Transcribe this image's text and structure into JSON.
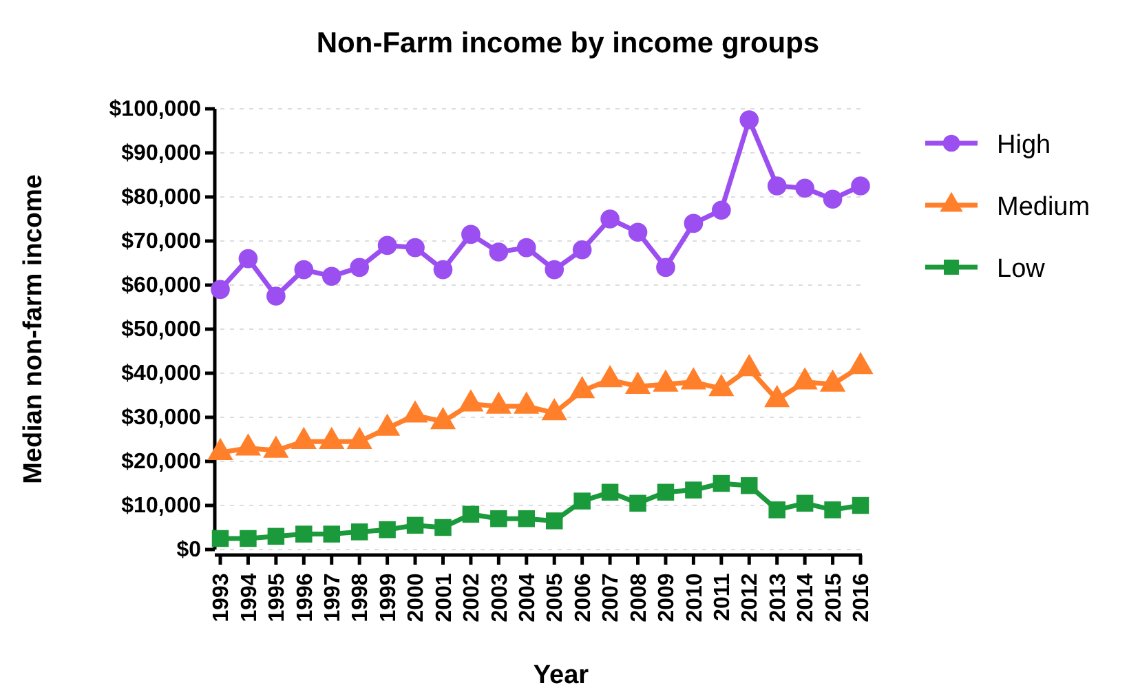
{
  "chart_data": {
    "type": "line",
    "title": "Non-Farm income by income groups",
    "xlabel": "Year",
    "ylabel": "Median non-farm income",
    "categories": [
      "1993",
      "1994",
      "1995",
      "1996",
      "1997",
      "1998",
      "1999",
      "2000",
      "2001",
      "2002",
      "2003",
      "2004",
      "2005",
      "2006",
      "2007",
      "2008",
      "2009",
      "2010",
      "2011",
      "2012",
      "2013",
      "2014",
      "2015",
      "2016"
    ],
    "series": [
      {
        "name": "High",
        "color": "#9b4ff0",
        "marker": "circle",
        "values": [
          59000,
          66000,
          57500,
          63500,
          62000,
          64000,
          69000,
          68500,
          63500,
          71500,
          67500,
          68500,
          63500,
          68000,
          75000,
          72000,
          64000,
          74000,
          77000,
          97500,
          82500,
          82000,
          79500,
          82500
        ]
      },
      {
        "name": "Medium",
        "color": "#ff7f2a",
        "marker": "triangle",
        "values": [
          22000,
          23000,
          22500,
          24500,
          24500,
          24500,
          27500,
          30500,
          29000,
          33000,
          32500,
          32500,
          31000,
          36000,
          38500,
          37000,
          37500,
          38000,
          36500,
          41000,
          34000,
          38000,
          37500,
          41500
        ]
      },
      {
        "name": "Low",
        "color": "#1a9a3a",
        "marker": "square",
        "values": [
          2500,
          2500,
          3000,
          3500,
          3500,
          4000,
          4500,
          5500,
          5000,
          8000,
          7000,
          7000,
          6500,
          11000,
          13000,
          10500,
          13000,
          13500,
          15000,
          14500,
          9000,
          10500,
          9000,
          10000
        ]
      }
    ],
    "ylim": [
      0,
      100000
    ],
    "yticks": [
      {
        "value": 0,
        "label": "$0"
      },
      {
        "value": 10000,
        "label": "$10,000"
      },
      {
        "value": 20000,
        "label": "$20,000"
      },
      {
        "value": 30000,
        "label": "$30,000"
      },
      {
        "value": 40000,
        "label": "$40,000"
      },
      {
        "value": 50000,
        "label": "$50,000"
      },
      {
        "value": 60000,
        "label": "$60,000"
      },
      {
        "value": 70000,
        "label": "$70,000"
      },
      {
        "value": 80000,
        "label": "$80,000"
      },
      {
        "value": 90000,
        "label": "$90,000"
      },
      {
        "value": 100000,
        "label": "$100,000"
      }
    ],
    "grid": "y",
    "legend": "right",
    "line_style": "solid"
  }
}
